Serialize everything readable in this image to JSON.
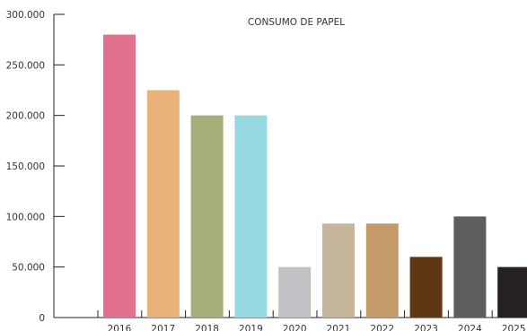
{
  "chart_data": {
    "type": "bar",
    "title": "CONSUMO DE PAPEL",
    "xlabel": "",
    "ylabel": "",
    "categories": [
      "2016",
      "2017",
      "2018",
      "2019",
      "2020",
      "2021",
      "2022",
      "2023",
      "2024",
      "2025"
    ],
    "values": [
      280000,
      225000,
      200000,
      200000,
      50000,
      93000,
      93000,
      60000,
      100000,
      50000
    ],
    "colors": [
      "#e2708f",
      "#e8b278",
      "#a6ae79",
      "#97d9e2",
      "#c1c1c5",
      "#c6b69c",
      "#c49a6b",
      "#5f3813",
      "#5e5e5f",
      "#262223"
    ],
    "ylim": [
      0,
      300000
    ],
    "yticks": [
      0,
      50000,
      100000,
      150000,
      200000,
      250000,
      300000
    ],
    "ytick_labels": [
      "0",
      "50.000",
      "100.000",
      "150.000",
      "200.000",
      "250.000",
      "300.000"
    ],
    "grid": false,
    "legend": "none"
  }
}
